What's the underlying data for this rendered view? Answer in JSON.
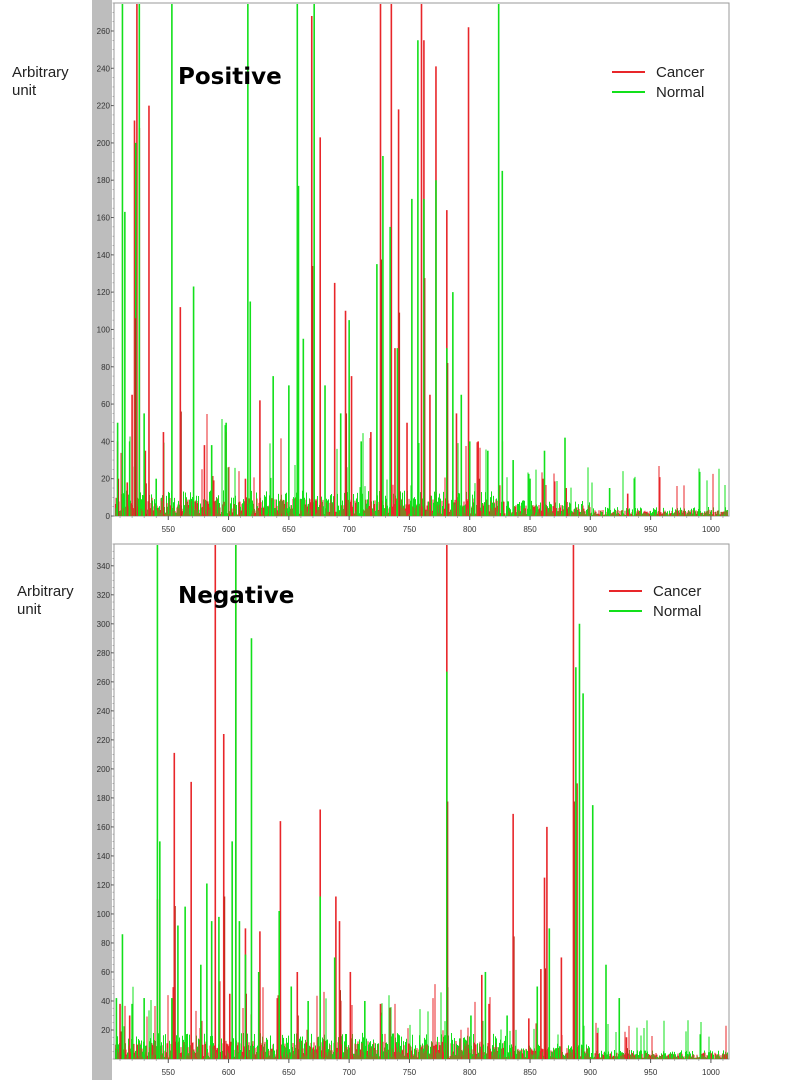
{
  "ylabel": "Arbitrary unit",
  "colors": {
    "cancer": "#e8262a",
    "normal": "#12e01b",
    "frame_gray": "#bdbdbd"
  },
  "chart_data": [
    {
      "type": "bar",
      "title": "Positive",
      "ylabel": "Arbitrary unit",
      "xlim": [
        505,
        1015
      ],
      "ylim": [
        0,
        275
      ],
      "xticks": [
        550,
        600,
        650,
        700,
        750,
        800,
        850,
        900,
        950,
        1000
      ],
      "yticks": [
        0,
        20,
        40,
        60,
        80,
        100,
        120,
        140,
        160,
        180,
        200,
        220,
        240,
        260
      ],
      "legend": {
        "position": "top-right",
        "entries": [
          "Cancer",
          "Normal"
        ]
      },
      "series": [
        {
          "name": "Cancer",
          "color": "#e8262a",
          "peaks": [
            [
              508,
              40
            ],
            [
              516,
              18
            ],
            [
              520,
              65
            ],
            [
              522,
              212
            ],
            [
              524,
              275
            ],
            [
              526,
              208
            ],
            [
              531,
              35
            ],
            [
              534,
              220
            ],
            [
              546,
              45
            ],
            [
              560,
              112
            ],
            [
              580,
              38
            ],
            [
              598,
              45
            ],
            [
              614,
              20
            ],
            [
              626,
              62
            ],
            [
              657,
              107
            ],
            [
              669,
              268
            ],
            [
              676,
              203
            ],
            [
              688,
              125
            ],
            [
              697,
              110
            ],
            [
              702,
              75
            ],
            [
              718,
              45
            ],
            [
              726,
              275
            ],
            [
              735,
              275
            ],
            [
              738,
              90
            ],
            [
              741,
              218
            ],
            [
              748,
              50
            ],
            [
              760,
              275
            ],
            [
              762,
              255
            ],
            [
              767,
              65
            ],
            [
              772,
              241
            ],
            [
              781,
              164
            ],
            [
              789,
              55
            ],
            [
              799,
              262
            ],
            [
              807,
              40
            ],
            [
              827,
              40
            ],
            [
              861,
              20
            ],
            [
              880,
              15
            ],
            [
              931,
              12
            ]
          ]
        },
        {
          "name": "Normal",
          "color": "#12e01b",
          "peaks": [
            [
              508,
              50
            ],
            [
              512,
              275
            ],
            [
              514,
              163
            ],
            [
              518,
              40
            ],
            [
              523,
              200
            ],
            [
              526,
              275
            ],
            [
              530,
              55
            ],
            [
              540,
              20
            ],
            [
              553,
              275
            ],
            [
              571,
              123
            ],
            [
              586,
              38
            ],
            [
              598,
              50
            ],
            [
              616,
              275
            ],
            [
              618,
              115
            ],
            [
              637,
              75
            ],
            [
              650,
              70
            ],
            [
              657,
              275
            ],
            [
              658,
              177
            ],
            [
              662,
              95
            ],
            [
              671,
              275
            ],
            [
              680,
              70
            ],
            [
              693,
              55
            ],
            [
              700,
              105
            ],
            [
              710,
              40
            ],
            [
              723,
              135
            ],
            [
              728,
              193
            ],
            [
              734,
              155
            ],
            [
              740,
              90
            ],
            [
              752,
              170
            ],
            [
              757,
              255
            ],
            [
              762,
              170
            ],
            [
              772,
              180
            ],
            [
              781,
              90
            ],
            [
              786,
              120
            ],
            [
              793,
              65
            ],
            [
              800,
              40
            ],
            [
              815,
              35
            ],
            [
              824,
              275
            ],
            [
              827,
              185
            ],
            [
              836,
              30
            ],
            [
              850,
              20
            ],
            [
              862,
              35
            ],
            [
              879,
              42
            ],
            [
              916,
              15
            ]
          ]
        }
      ]
    },
    {
      "type": "bar",
      "title": "Negative",
      "ylabel": "Arbitrary unit",
      "xlim": [
        505,
        1015
      ],
      "ylim": [
        0,
        355
      ],
      "xticks": [
        550,
        600,
        650,
        700,
        750,
        800,
        850,
        900,
        950,
        1000
      ],
      "yticks": [
        20,
        40,
        60,
        80,
        100,
        120,
        140,
        160,
        180,
        200,
        220,
        240,
        260,
        280,
        300,
        320,
        340
      ],
      "legend": {
        "position": "top-right",
        "entries": [
          "Cancer",
          "Normal"
        ]
      },
      "series": [
        {
          "name": "Cancer",
          "color": "#e8262a",
          "peaks": [
            [
              510,
              38
            ],
            [
              518,
              30
            ],
            [
              541,
              110
            ],
            [
              555,
              211
            ],
            [
              569,
              191
            ],
            [
              589,
              355
            ],
            [
              596,
              224
            ],
            [
              601,
              45
            ],
            [
              606,
              355
            ],
            [
              614,
              90
            ],
            [
              626,
              88
            ],
            [
              643,
              164
            ],
            [
              657,
              60
            ],
            [
              676,
              172
            ],
            [
              689,
              112
            ],
            [
              692,
              95
            ],
            [
              701,
              60
            ],
            [
              726,
              38
            ],
            [
              781,
              355
            ],
            [
              810,
              58
            ],
            [
              816,
              38
            ],
            [
              836,
              169
            ],
            [
              849,
              28
            ],
            [
              859,
              62
            ],
            [
              862,
              125
            ],
            [
              864,
              160
            ],
            [
              876,
              70
            ],
            [
              886,
              355
            ],
            [
              889,
              190
            ],
            [
              906,
              18
            ],
            [
              930,
              15
            ]
          ]
        },
        {
          "name": "Normal",
          "color": "#12e01b",
          "peaks": [
            [
              507,
              42
            ],
            [
              512,
              86
            ],
            [
              520,
              38
            ],
            [
              530,
              42
            ],
            [
              541,
              355
            ],
            [
              543,
              150
            ],
            [
              553,
              42
            ],
            [
              558,
              92
            ],
            [
              564,
              105
            ],
            [
              577,
              65
            ],
            [
              582,
              121
            ],
            [
              586,
              95
            ],
            [
              592,
              98
            ],
            [
              603,
              150
            ],
            [
              606,
              355
            ],
            [
              609,
              95
            ],
            [
              614,
              72
            ],
            [
              619,
              290
            ],
            [
              625,
              60
            ],
            [
              642,
              102
            ],
            [
              652,
              50
            ],
            [
              666,
              40
            ],
            [
              676,
              112
            ],
            [
              688,
              70
            ],
            [
              713,
              40
            ],
            [
              727,
              30
            ],
            [
              781,
              267
            ],
            [
              801,
              30
            ],
            [
              813,
              60
            ],
            [
              831,
              30
            ],
            [
              856,
              50
            ],
            [
              866,
              90
            ],
            [
              888,
              270
            ],
            [
              891,
              300
            ],
            [
              894,
              252
            ],
            [
              902,
              175
            ],
            [
              913,
              65
            ],
            [
              924,
              42
            ]
          ]
        }
      ]
    }
  ]
}
